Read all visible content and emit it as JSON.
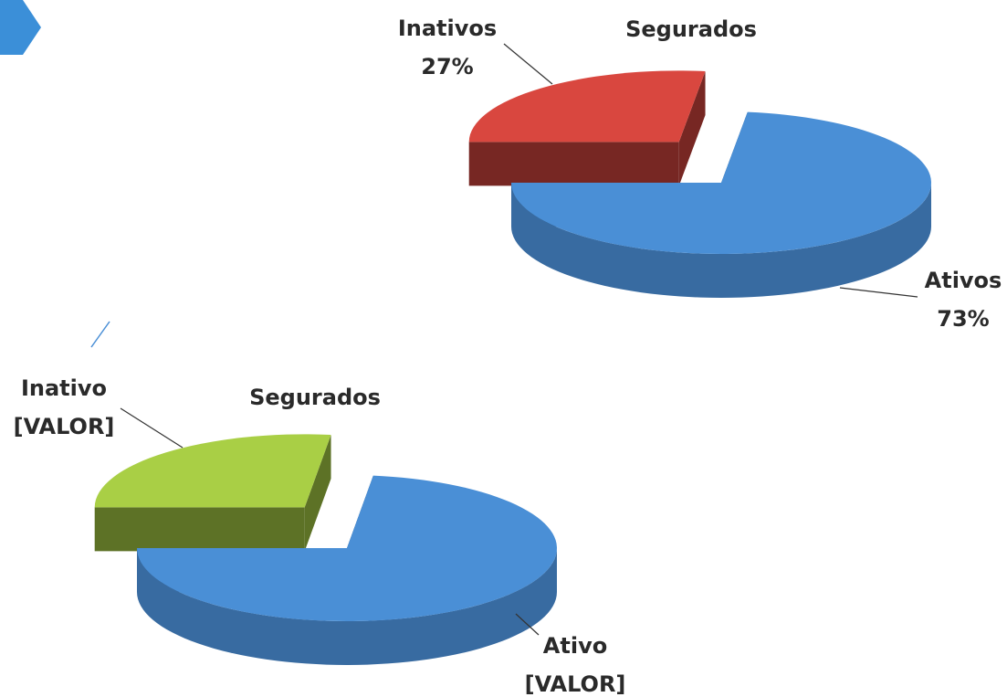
{
  "chart_data": [
    {
      "type": "pie3d",
      "title": "Segurados",
      "categories": [
        "Inativos",
        "Ativos"
      ],
      "values": [
        27,
        73
      ],
      "value_labels": [
        "27%",
        "73%"
      ],
      "colors": [
        "#d9473f",
        "#4a8fd6"
      ]
    },
    {
      "type": "pie3d",
      "title": "Segurados",
      "categories": [
        "Inativo",
        "Ativo"
      ],
      "values": [
        27,
        73
      ],
      "value_labels": [
        "[VALOR]",
        "[VALOR]"
      ],
      "colors": [
        "#a9cf45",
        "#4a8fd6"
      ]
    }
  ]
}
